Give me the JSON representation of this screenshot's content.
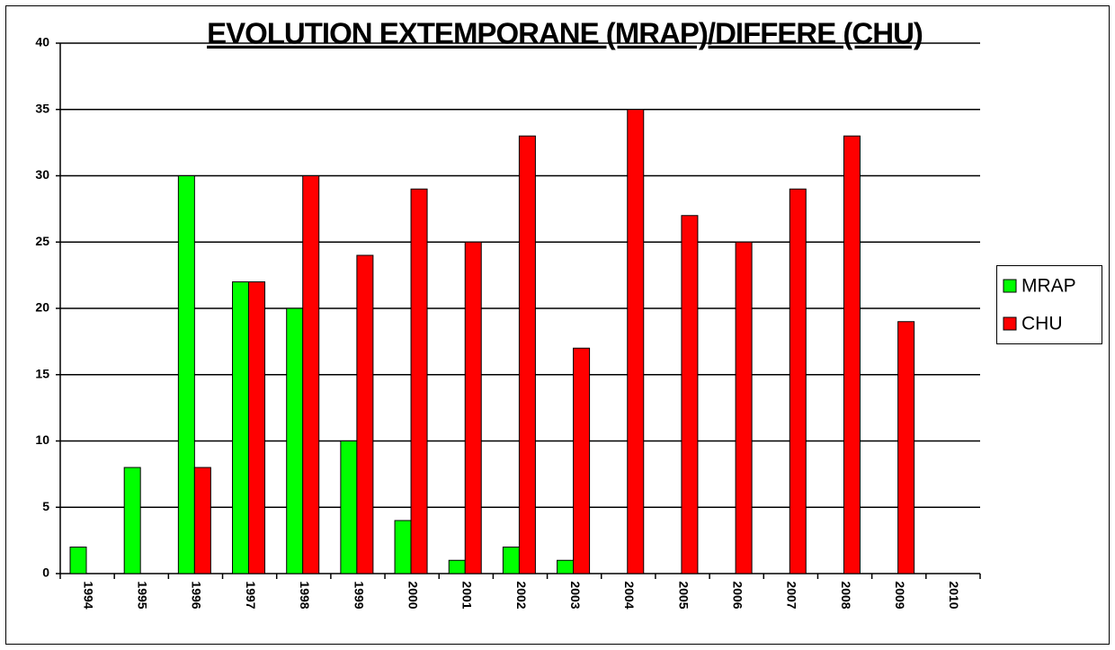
{
  "chart_data": {
    "type": "bar",
    "title": "EVOLUTION EXTEMPORANE (MRAP)/DIFFERE (CHU)",
    "categories": [
      "1994",
      "1995",
      "1996",
      "1997",
      "1998",
      "1999",
      "2000",
      "2001",
      "2002",
      "2003",
      "2004",
      "2005",
      "2006",
      "2007",
      "2008",
      "2009",
      "2010"
    ],
    "series": [
      {
        "name": "MRAP",
        "color": "#00ff00",
        "values": [
          2,
          8,
          30,
          22,
          20,
          10,
          4,
          1,
          2,
          1,
          null,
          null,
          null,
          null,
          null,
          null,
          null
        ]
      },
      {
        "name": "CHU",
        "color": "#ff0000",
        "values": [
          null,
          null,
          8,
          22,
          30,
          24,
          29,
          25,
          33,
          17,
          35,
          27,
          25,
          29,
          33,
          19,
          null
        ]
      }
    ],
    "ylim": [
      0,
      40
    ],
    "yticks": [
      0,
      5,
      10,
      15,
      20,
      25,
      30,
      35,
      40
    ],
    "grid": true,
    "legend": "right"
  }
}
